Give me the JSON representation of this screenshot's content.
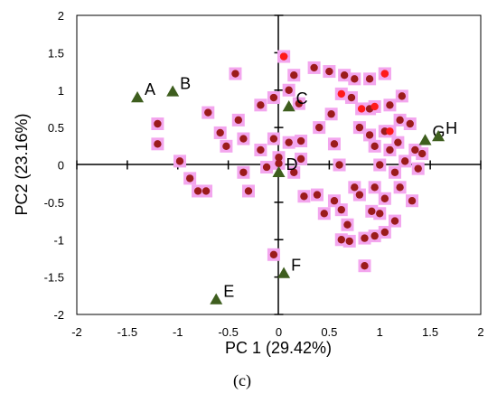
{
  "chart_data": {
    "type": "scatter",
    "title": "",
    "xlabel": "PC 1 (29.42%)",
    "ylabel": "PC2 (23.16%)",
    "xlim": [
      -2,
      2
    ],
    "ylim": [
      -2,
      2
    ],
    "xticks": [
      "-2",
      "-1.5",
      "-1",
      "-0.5",
      "0",
      "0.5",
      "1",
      "1.5",
      "2"
    ],
    "yticks": [
      "2",
      "1.5",
      "1",
      "0.5",
      "0",
      "-0.5",
      "-1",
      "-1.5",
      "-2"
    ],
    "grid": false,
    "caption": "(c)",
    "colors": {
      "point_fill": "#9B1B1B",
      "point_halo": "#F3A6EE",
      "point_highlight": "#FF1A1A",
      "triangle": "#3E5E1E"
    },
    "points": [
      [
        -1.2,
        0.28
      ],
      [
        -1.2,
        0.55
      ],
      [
        -0.98,
        0.05
      ],
      [
        -0.88,
        -0.18
      ],
      [
        -0.8,
        -0.35
      ],
      [
        -0.7,
        0.7
      ],
      [
        -0.72,
        -0.35
      ],
      [
        -0.58,
        0.43
      ],
      [
        -0.52,
        0.25
      ],
      [
        -0.43,
        1.22
      ],
      [
        -0.4,
        0.6
      ],
      [
        -0.35,
        0.35
      ],
      [
        -0.35,
        -0.1
      ],
      [
        -0.3,
        -0.35
      ],
      [
        -0.18,
        0.2
      ],
      [
        -0.18,
        0.8
      ],
      [
        -0.12,
        -0.03
      ],
      [
        -0.05,
        0.9
      ],
      [
        -0.05,
        0.35
      ],
      [
        0.0,
        0.1
      ],
      [
        0.0,
        0.02
      ],
      [
        -0.05,
        -1.2
      ],
      [
        0.05,
        1.45
      ],
      [
        0.1,
        1.0
      ],
      [
        0.15,
        -0.1
      ],
      [
        0.1,
        0.3
      ],
      [
        0.15,
        1.2
      ],
      [
        0.2,
        0.82
      ],
      [
        0.22,
        0.32
      ],
      [
        0.22,
        0.08
      ],
      [
        0.25,
        -0.42
      ],
      [
        0.35,
        1.3
      ],
      [
        0.38,
        -0.4
      ],
      [
        0.4,
        0.5
      ],
      [
        0.45,
        -0.65
      ],
      [
        0.5,
        1.25
      ],
      [
        0.52,
        0.68
      ],
      [
        0.55,
        0.28
      ],
      [
        0.55,
        -0.48
      ],
      [
        0.6,
        0.0
      ],
      [
        0.62,
        -0.6
      ],
      [
        0.62,
        -1.0
      ],
      [
        0.65,
        1.2
      ],
      [
        0.68,
        -0.8
      ],
      [
        0.7,
        -1.02
      ],
      [
        0.72,
        0.9
      ],
      [
        0.75,
        -0.3
      ],
      [
        0.75,
        1.15
      ],
      [
        0.8,
        0.5
      ],
      [
        0.8,
        -0.4
      ],
      [
        0.85,
        -0.98
      ],
      [
        0.85,
        -1.35
      ],
      [
        0.9,
        1.15
      ],
      [
        0.9,
        0.75
      ],
      [
        0.9,
        0.4
      ],
      [
        0.92,
        -0.62
      ],
      [
        0.95,
        -0.3
      ],
      [
        0.95,
        0.25
      ],
      [
        0.95,
        -0.95
      ],
      [
        1.0,
        0.0
      ],
      [
        1.0,
        -0.65
      ],
      [
        1.05,
        1.22
      ],
      [
        1.05,
        0.45
      ],
      [
        1.05,
        -0.45
      ],
      [
        1.05,
        -0.9
      ],
      [
        1.1,
        0.8
      ],
      [
        1.1,
        0.2
      ],
      [
        1.15,
        -0.1
      ],
      [
        1.15,
        -0.75
      ],
      [
        1.18,
        0.3
      ],
      [
        1.2,
        0.6
      ],
      [
        1.2,
        -0.3
      ],
      [
        1.22,
        0.92
      ],
      [
        1.25,
        0.05
      ],
      [
        1.3,
        0.55
      ],
      [
        1.32,
        -0.48
      ],
      [
        1.35,
        0.2
      ],
      [
        1.38,
        -0.05
      ],
      [
        1.42,
        0.15
      ]
    ],
    "highlighted_points": [
      [
        0.05,
        1.45
      ],
      [
        0.62,
        0.95
      ],
      [
        0.82,
        0.75
      ],
      [
        0.95,
        0.78
      ],
      [
        1.05,
        1.22
      ],
      [
        1.1,
        0.45
      ]
    ],
    "labeled_points": [
      {
        "label": "A",
        "x": -1.4,
        "y": 0.9
      },
      {
        "label": "B",
        "x": -1.05,
        "y": 0.98
      },
      {
        "label": "C",
        "x": 0.1,
        "y": 0.78
      },
      {
        "label": "D",
        "x": 0.0,
        "y": -0.1
      },
      {
        "label": "E",
        "x": -0.62,
        "y": -1.8
      },
      {
        "label": "F",
        "x": 0.05,
        "y": -1.45
      },
      {
        "label": "G",
        "x": 1.45,
        "y": 0.33
      },
      {
        "label": "H",
        "x": 1.58,
        "y": 0.38
      }
    ]
  }
}
